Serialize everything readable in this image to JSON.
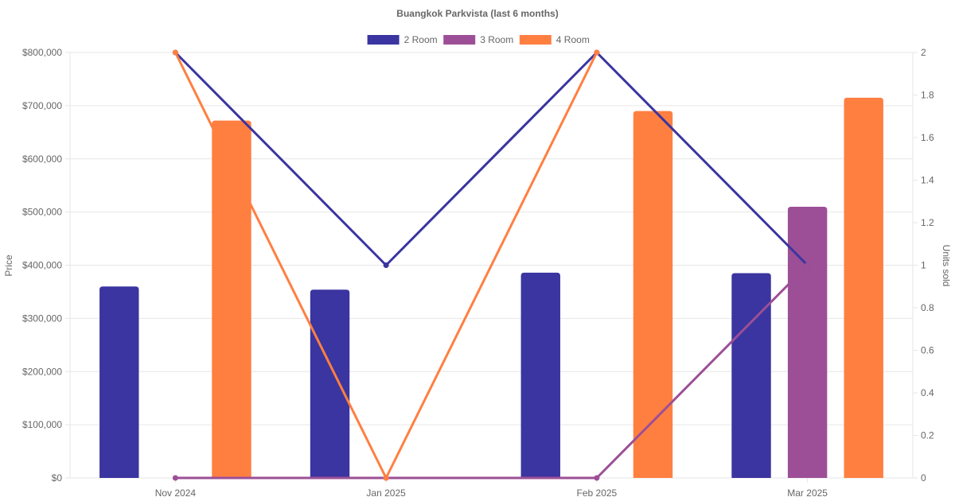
{
  "chart_data": {
    "type": "bar",
    "title": "Buangkok Parkvista (last 6 months)",
    "categories": [
      "Nov 2024",
      "Jan 2025",
      "Feb 2025",
      "Mar 2025"
    ],
    "legend": {
      "position": "top"
    },
    "grid": true,
    "y_left": {
      "label": "Price",
      "range": [
        0,
        800000
      ],
      "ticks": [
        "$0",
        "$100,000",
        "$200,000",
        "$300,000",
        "$400,000",
        "$500,000",
        "$600,000",
        "$700,000",
        "$800,000"
      ]
    },
    "y_right": {
      "label": "Units sold",
      "range": [
        0,
        2
      ],
      "ticks": [
        "0",
        "0.2",
        "0.4",
        "0.6",
        "0.8",
        "1",
        "1.2",
        "1.4",
        "1.6",
        "1.8",
        "2"
      ]
    },
    "series": [
      {
        "name": "2 Room",
        "color": "#3a35a0",
        "bar_values": [
          360000,
          354000,
          386000,
          385000
        ],
        "units_sold": [
          2,
          1,
          2,
          1
        ]
      },
      {
        "name": "3 Room",
        "color": "#9c4f96",
        "bar_values": [
          null,
          null,
          null,
          510000
        ],
        "units_sold": [
          0,
          0,
          0,
          1
        ]
      },
      {
        "name": "4 Room",
        "color": "#ff7f41",
        "bar_values": [
          672000,
          null,
          690000,
          715000
        ],
        "units_sold": [
          2,
          0,
          2,
          null
        ]
      }
    ]
  }
}
